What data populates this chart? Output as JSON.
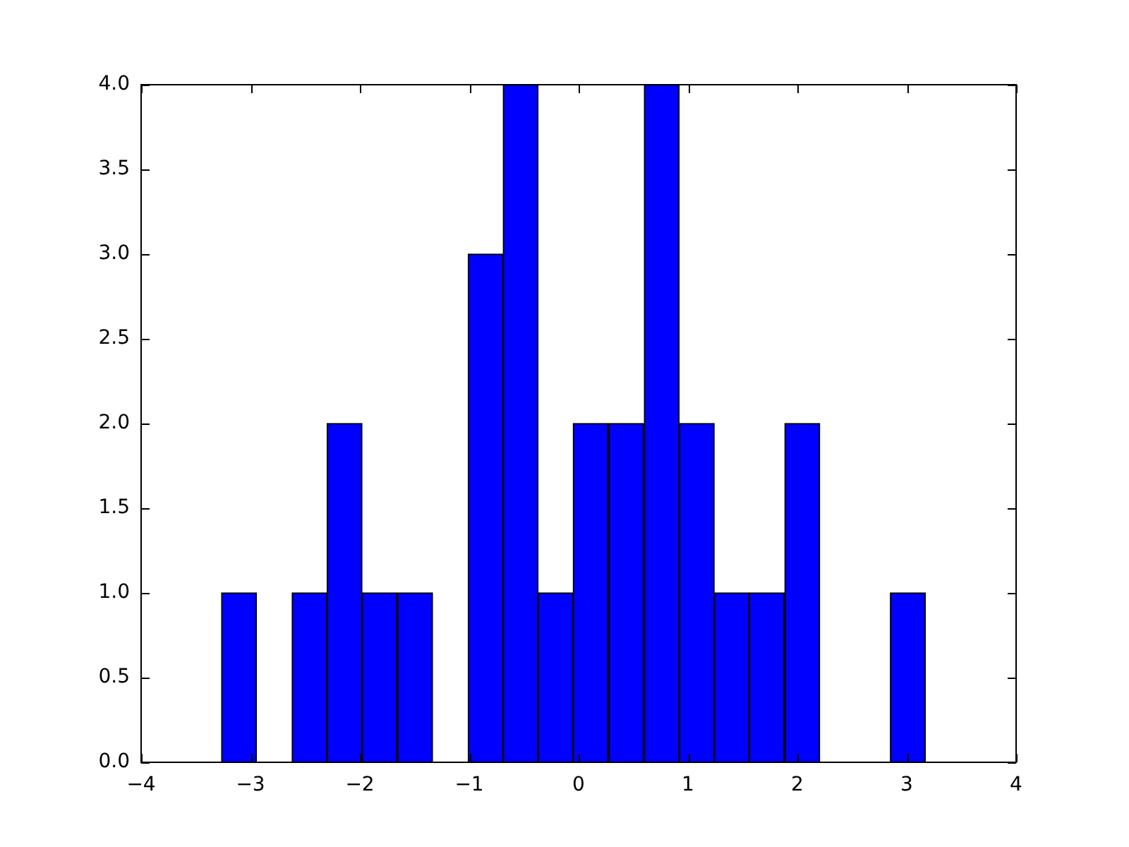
{
  "chart_data": {
    "type": "histogram",
    "bins": [
      -3.27,
      -2.94,
      -2.62,
      -2.3,
      -1.98,
      -1.66,
      -1.33,
      -1.01,
      -0.69,
      -0.37,
      -0.05,
      0.27,
      0.6,
      0.92,
      1.24,
      1.56,
      1.88,
      2.21,
      2.53,
      2.85,
      3.17
    ],
    "values": [
      1,
      0,
      1,
      2,
      1,
      1,
      0,
      3,
      4,
      1,
      2,
      2,
      4,
      2,
      1,
      1,
      2,
      0,
      0,
      1
    ],
    "color": "#0000ff",
    "xlim": [
      -4,
      4
    ],
    "xticks": [
      -4,
      -3,
      -2,
      -1,
      0,
      1,
      2,
      3,
      4
    ],
    "ylim": [
      0,
      4
    ],
    "yticks": [
      {
        "value": 0,
        "label": "0.0"
      },
      {
        "value": 0.5,
        "label": "0.5"
      },
      {
        "value": 1,
        "label": "1.0"
      },
      {
        "value": 1.5,
        "label": "1.5"
      },
      {
        "value": 2,
        "label": "2.0"
      },
      {
        "value": 2.5,
        "label": "2.5"
      },
      {
        "value": 3,
        "label": "3.0"
      },
      {
        "value": 3.5,
        "label": "3.5"
      },
      {
        "value": 4,
        "label": "4.0"
      }
    ],
    "grid": false
  }
}
